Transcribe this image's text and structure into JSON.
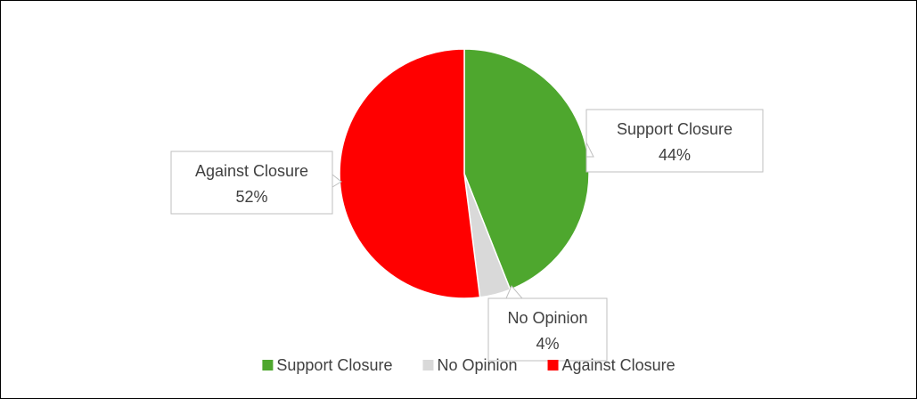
{
  "chart_data": {
    "type": "pie",
    "title": "",
    "categories": [
      "Support Closure",
      "No Opinion",
      "Against Closure"
    ],
    "values": [
      44,
      4,
      52
    ],
    "value_format": "percent",
    "colors": [
      "#4ea72e",
      "#d9d9d9",
      "#ff0000"
    ],
    "start_angle_deg": 0,
    "direction": "clockwise",
    "data_labels": [
      "Support Closure\n44%",
      "No Opinion\n4%",
      "Against Closure\n52%"
    ],
    "legend": {
      "position": "bottom",
      "entries": [
        "Support Closure",
        "No Opinion",
        "Against Closure"
      ]
    }
  }
}
